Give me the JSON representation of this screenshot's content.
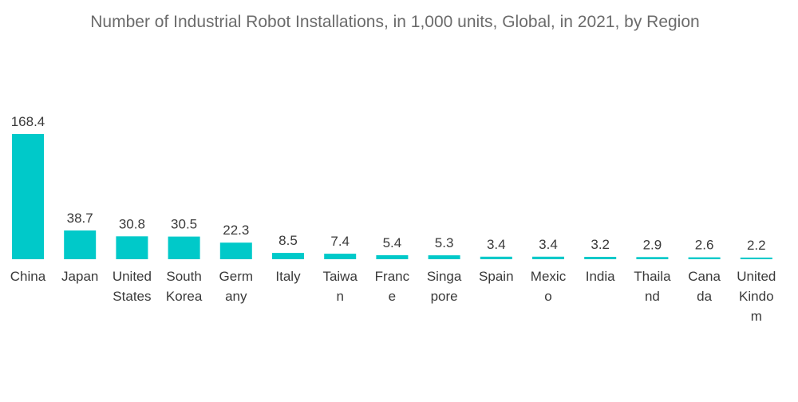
{
  "chart_data": {
    "type": "bar",
    "title": "Number of Industrial Robot Installations, in 1,000 units, Global, in 2021, by Region",
    "xlabel": "",
    "ylabel": "",
    "ylim": [
      0,
      168.4
    ],
    "grid": false,
    "bar_color": "#00c9c9",
    "categories": [
      [
        "China"
      ],
      [
        "Japan"
      ],
      [
        "United",
        "States"
      ],
      [
        "South",
        "Korea"
      ],
      [
        "Germ",
        "any"
      ],
      [
        "Italy"
      ],
      [
        "Taiwa",
        "n"
      ],
      [
        "Franc",
        "e"
      ],
      [
        "Singa",
        "pore"
      ],
      [
        "Spain"
      ],
      [
        "Mexic",
        "o"
      ],
      [
        "India"
      ],
      [
        "Thaila",
        "nd"
      ],
      [
        "Cana",
        "da"
      ],
      [
        "United",
        "Kindo",
        "m"
      ]
    ],
    "values": [
      168.4,
      38.7,
      30.8,
      30.5,
      22.3,
      8.5,
      7.4,
      5.4,
      5.3,
      3.4,
      3.4,
      3.2,
      2.9,
      2.6,
      2.2
    ],
    "value_labels": [
      "168.4",
      "38.7",
      "30.8",
      "30.5",
      "22.3",
      "8.5",
      "7.4",
      "5.4",
      "5.3",
      "3.4",
      "3.4",
      "3.2",
      "2.9",
      "2.6",
      "2.2"
    ]
  }
}
